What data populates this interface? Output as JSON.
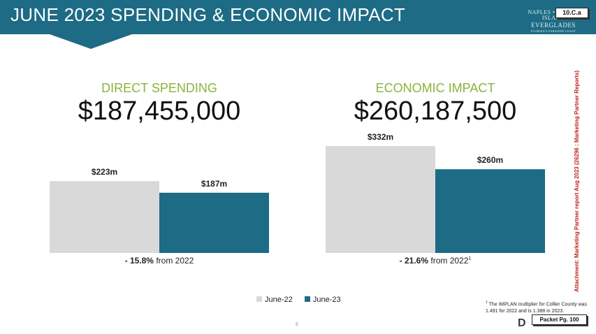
{
  "header": {
    "title": "JUNE 2023 SPENDING & ECONOMIC IMPACT",
    "logo_line1": "NAPLES • MARCO ISLAND",
    "logo_line2": "EVERGLADES",
    "logo_line3": "FLORIDA'S PARADISE COAST",
    "agenda_tag": "10.C.a"
  },
  "panels": {
    "direct": {
      "label": "DIRECT SPENDING",
      "value": "$187,455,000"
    },
    "economic": {
      "label": "ECONOMIC IMPACT",
      "value": "$260,187,500"
    }
  },
  "chart_data": [
    {
      "type": "bar",
      "categories": [
        "June-22",
        "June-23"
      ],
      "values": [
        223,
        187
      ],
      "data_labels": [
        "$223m",
        "$187m"
      ],
      "colors": [
        "#d9d9d9",
        "#1d6b85"
      ],
      "ylim": [
        0,
        340
      ],
      "change": {
        "bold": "- 15.8%",
        "text": " from 2022",
        "sup": ""
      }
    },
    {
      "type": "bar",
      "categories": [
        "June-22",
        "June-23"
      ],
      "values": [
        332,
        260
      ],
      "data_labels": [
        "$332m",
        "$260m"
      ],
      "colors": [
        "#d9d9d9",
        "#1d6b85"
      ],
      "ylim": [
        0,
        340
      ],
      "change": {
        "bold": "- 21.6%",
        "text": " from 2022",
        "sup": "1"
      }
    }
  ],
  "legend": {
    "items": [
      {
        "label": "June-22",
        "color": "#d9d9d9"
      },
      {
        "label": "June-23",
        "color": "#1d6b85"
      }
    ]
  },
  "footnote": {
    "sup": "1",
    "text": "The IMPLAN multiplier for Collier County was 1.491 for 2022 and is 1.388 in 2023."
  },
  "page_number": "8",
  "packet_tag": "Packet Pg. 100",
  "brand_mark": "D",
  "side_text": "Attachment: Marketing Partner report Aug 2023  (26296 : Marketing Partner Reports)"
}
